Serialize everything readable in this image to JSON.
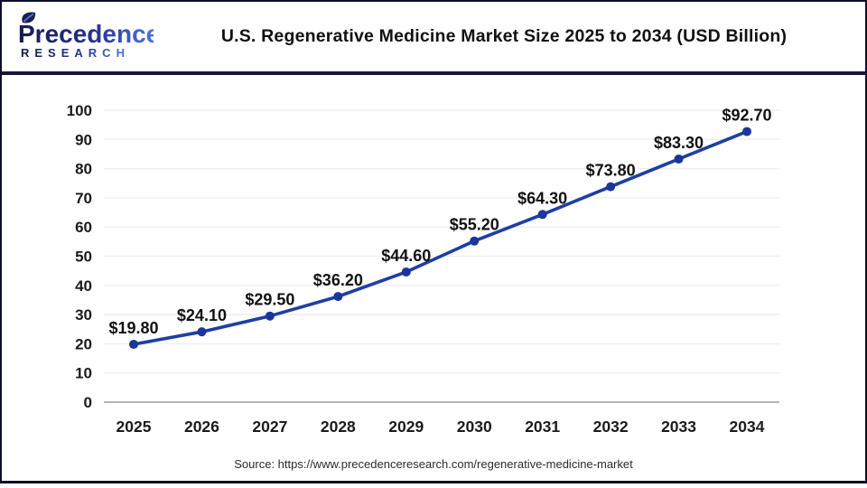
{
  "header": {
    "logo": {
      "brand": "Precedence",
      "sub": "RESEARCH"
    },
    "title": "U.S. Regenerative Medicine Market Size 2025 to 2034 (USD Billion)"
  },
  "chart_data": {
    "type": "line",
    "title": "U.S. Regenerative Medicine Market Size 2025 to 2034 (USD Billion)",
    "categories": [
      "2025",
      "2026",
      "2027",
      "2028",
      "2029",
      "2030",
      "2031",
      "2032",
      "2033",
      "2034"
    ],
    "values": [
      19.8,
      24.1,
      29.5,
      36.2,
      44.6,
      55.2,
      64.3,
      73.8,
      83.3,
      92.7
    ],
    "point_labels": [
      "$19.80",
      "$24.10",
      "$29.50",
      "$36.20",
      "$44.60",
      "$55.20",
      "$64.30",
      "$73.80",
      "$83.30",
      "$92.70"
    ],
    "xlabel": "",
    "ylabel": "",
    "ylim": [
      0,
      100
    ],
    "ytick_step": 10,
    "grid": true,
    "legend": "none",
    "line_color": "#1e3fa3",
    "marker_color": "#1b359b",
    "label_color": "#111111",
    "tick_text_color": "#1b1b1b",
    "grid_color": "#efefef",
    "axis_color": "#b5b5b5"
  },
  "footer": {
    "source": "Source: https://www.precedenceresearch.com/regenerative-medicine-market"
  },
  "colors": {
    "border": "#0d0d28",
    "divider": "#15153f",
    "logo_dark": "#141a4e",
    "logo_blue": "#4d7ce8"
  }
}
